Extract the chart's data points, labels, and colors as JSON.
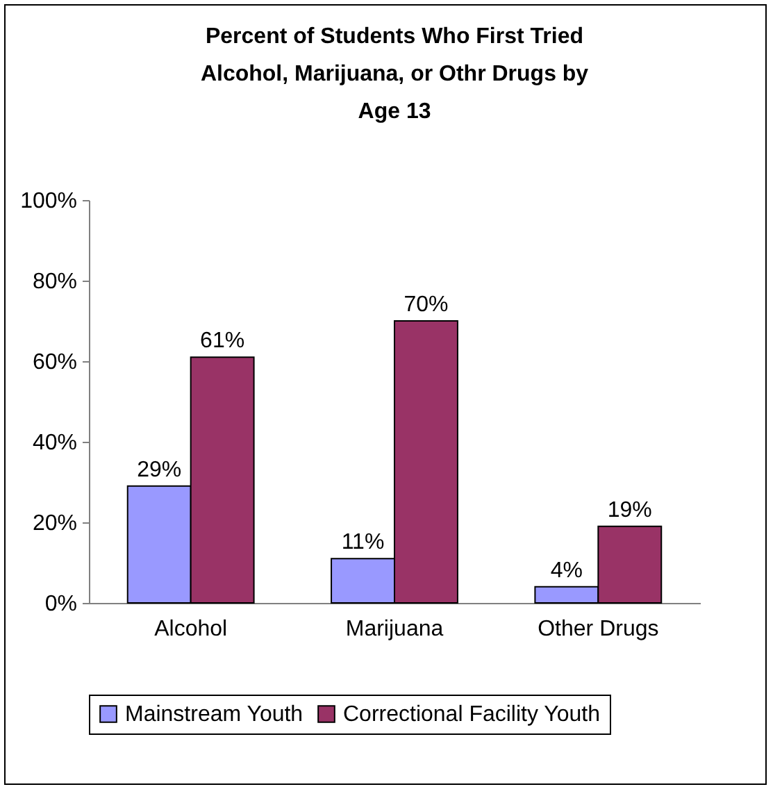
{
  "chart_data": {
    "type": "bar",
    "title": "Percent of Students Who First Tried\nAlcohol, Marijuana, or Othr Drugs by\nAge 13",
    "categories": [
      "Alcohol",
      "Marijuana",
      "Other Drugs"
    ],
    "series": [
      {
        "name": "Mainstream Youth",
        "color": "#9999ff",
        "values": [
          29,
          11,
          4
        ],
        "value_labels": [
          "29%",
          "11%",
          "4%"
        ]
      },
      {
        "name": "Correctional Facility Youth",
        "color": "#993366",
        "values": [
          61,
          70,
          19
        ],
        "value_labels": [
          "61%",
          "70%",
          "19%"
        ]
      }
    ],
    "ylim": [
      0,
      100
    ],
    "yticks": [
      {
        "value": 0,
        "label": "0%"
      },
      {
        "value": 20,
        "label": "20%"
      },
      {
        "value": 40,
        "label": "40%"
      },
      {
        "value": 60,
        "label": "60%"
      },
      {
        "value": 80,
        "label": "80%"
      },
      {
        "value": 100,
        "label": "100%"
      }
    ],
    "grid": false,
    "legend": "bottom"
  }
}
